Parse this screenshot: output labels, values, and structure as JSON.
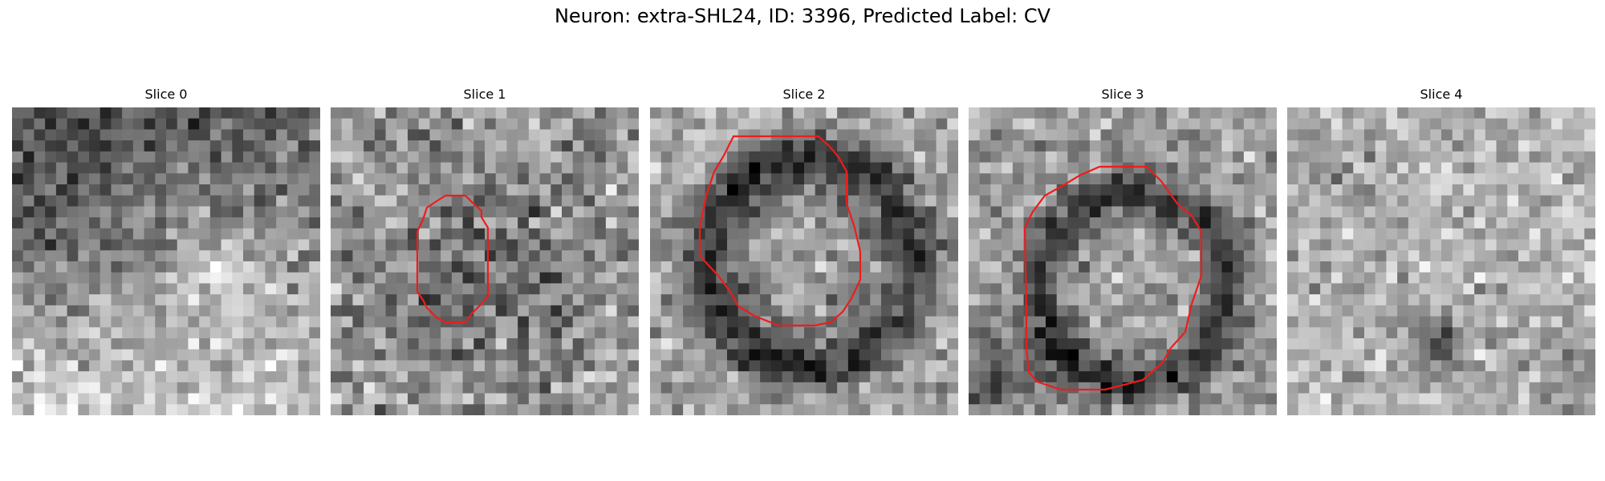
{
  "figure": {
    "title": "Neuron: extra-SHL24, ID: 3396, Predicted Label: CV"
  },
  "colors": {
    "outline": "#ee1c1c"
  },
  "panels": [
    {
      "title": "Slice 0",
      "contour": false
    },
    {
      "title": "Slice 1",
      "contour": true
    },
    {
      "title": "Slice 2",
      "contour": true
    },
    {
      "title": "Slice 3",
      "contour": true
    },
    {
      "title": "Slice 4",
      "contour": false
    }
  ]
}
